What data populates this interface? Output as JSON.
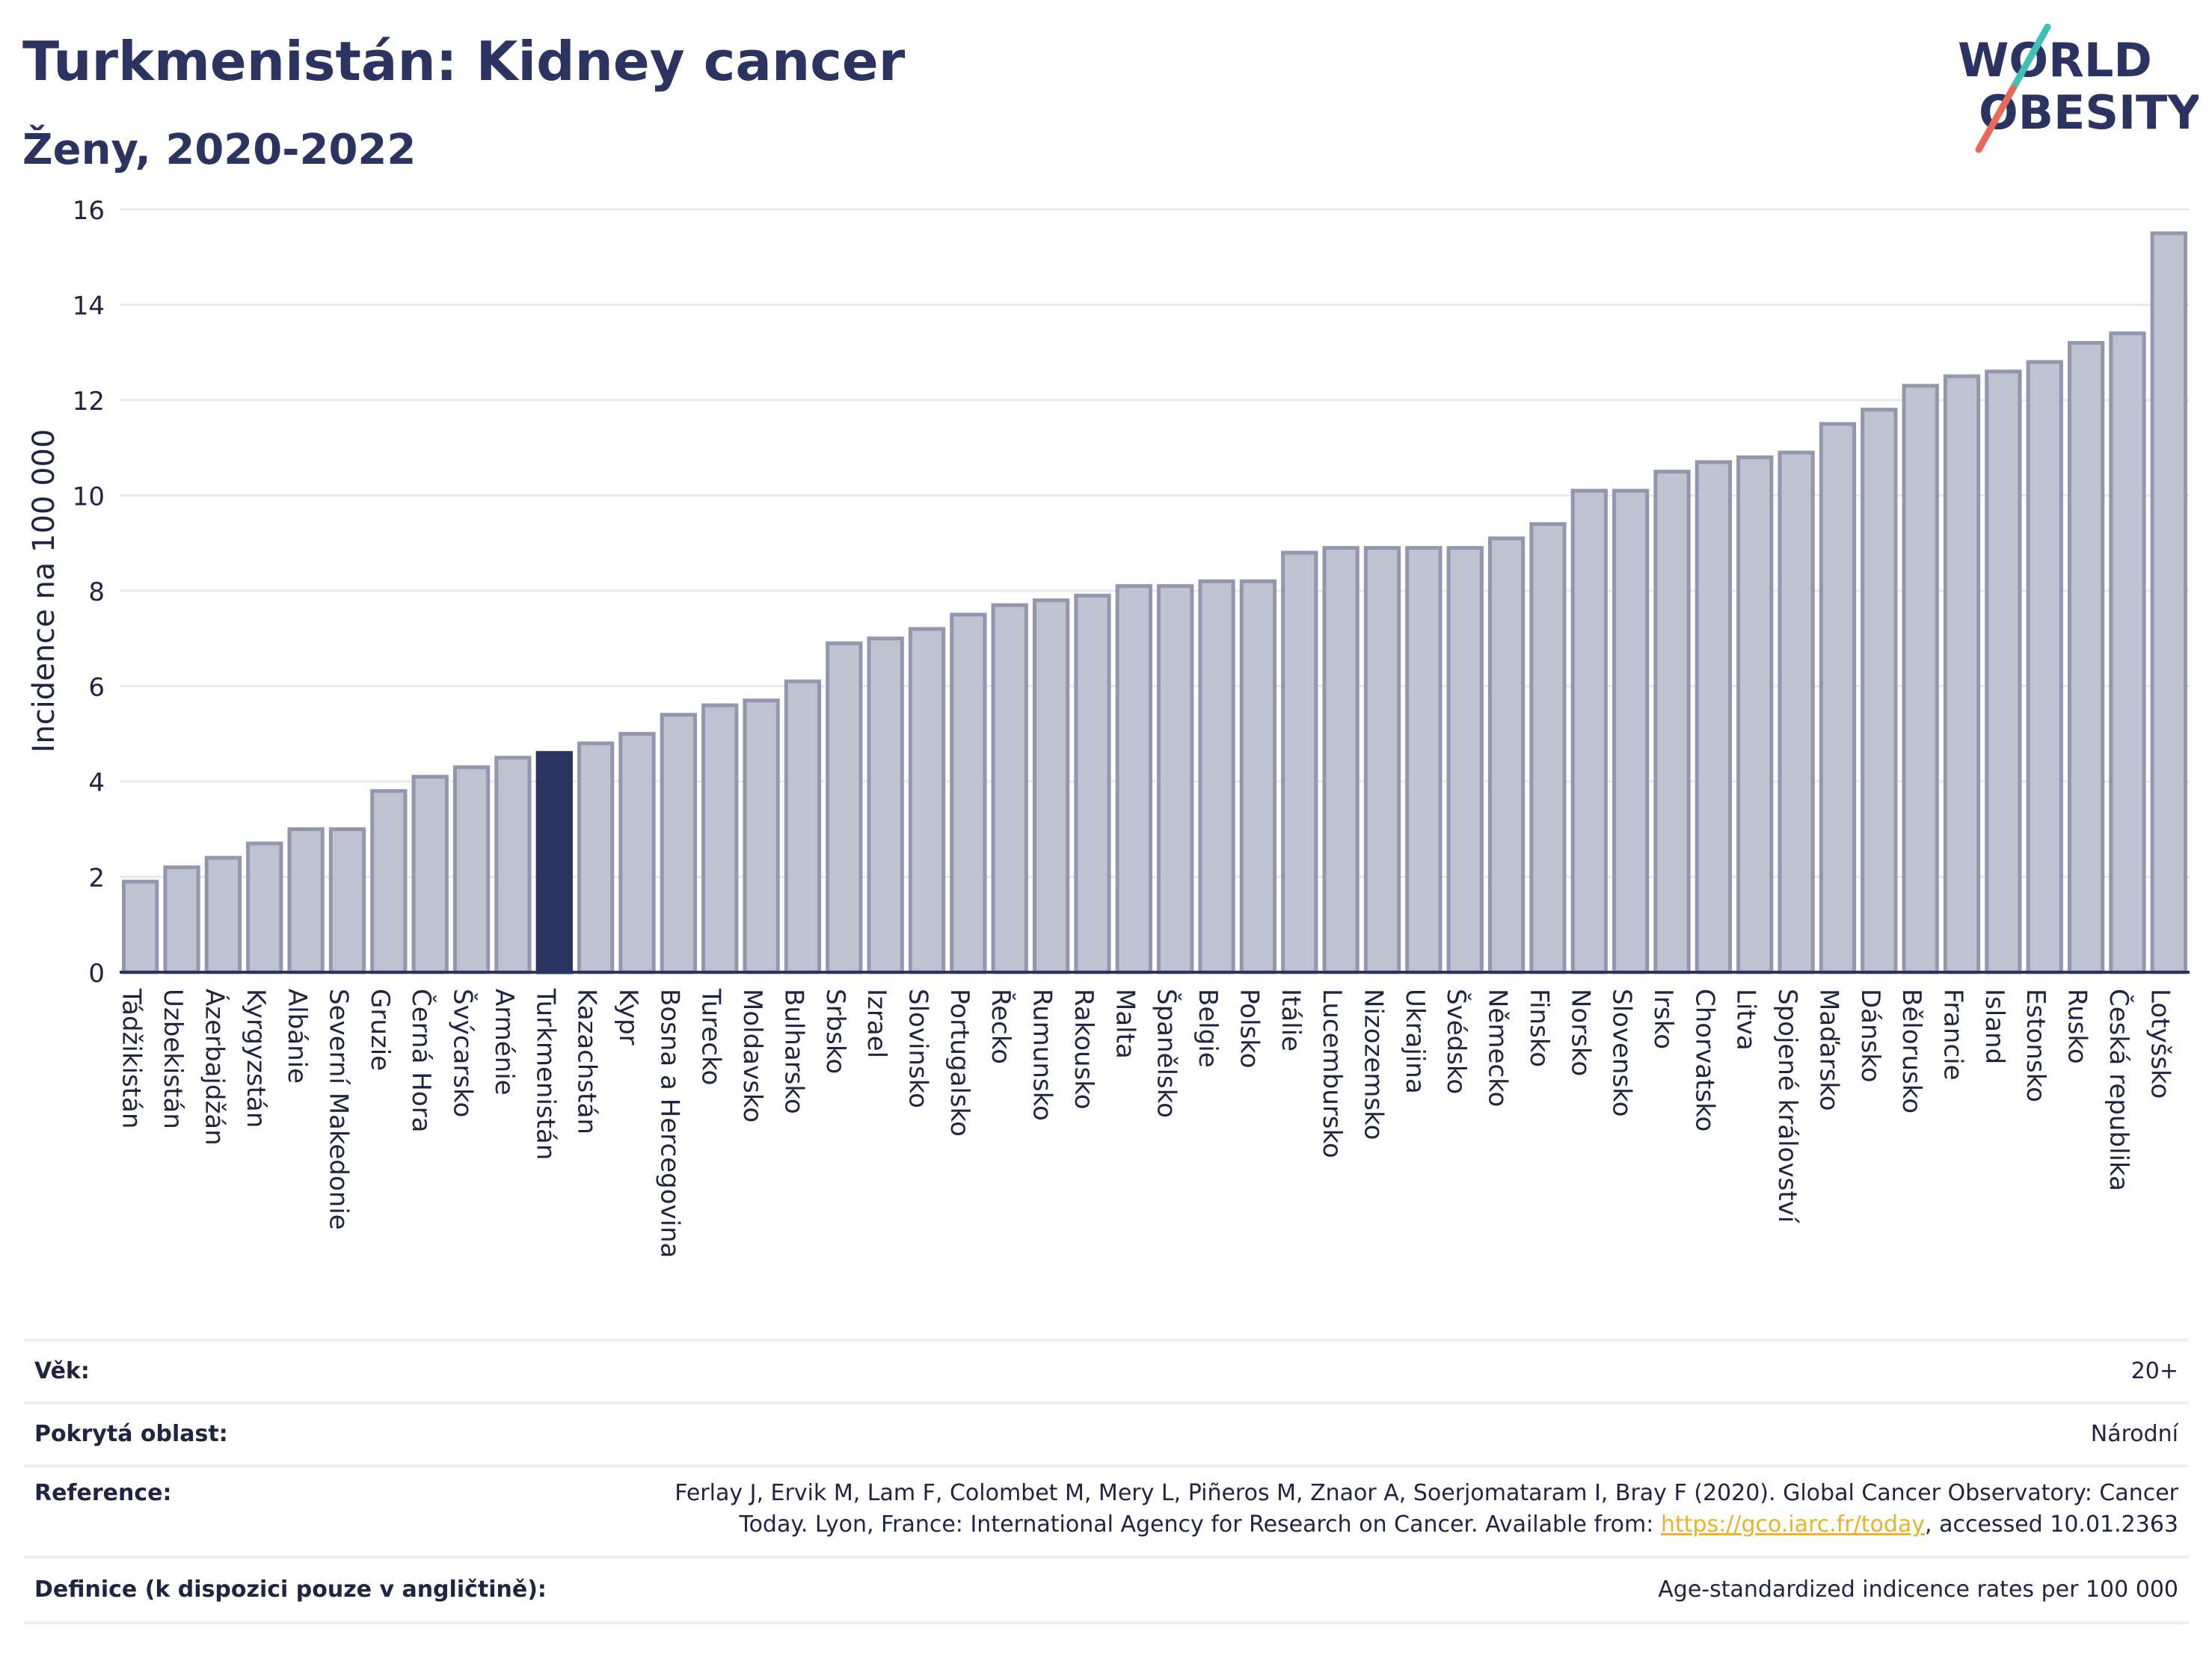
{
  "header": {
    "title": "Turkmenistán: Kidney cancer",
    "subtitle": "Ženy, 2020-2022"
  },
  "logo": {
    "line1": "WORLD",
    "line2": "OBESITY",
    "accent_colors": [
      "#3ec0b5",
      "#e8685a"
    ]
  },
  "chart_data": {
    "type": "bar",
    "title": "Turkmenistán: Kidney cancer",
    "subtitle": "Ženy, 2020-2022",
    "ylabel": "Incidence na 100 000",
    "xlabel": "",
    "ylim": [
      0,
      16
    ],
    "yticks": [
      0,
      2,
      4,
      6,
      8,
      10,
      12,
      14,
      16
    ],
    "grid": true,
    "highlight": "Turkmenistán",
    "colors": {
      "bar": "#bfc3d0",
      "bar_edge": "#9297ae",
      "highlight": "#2b3461"
    },
    "categories": [
      "Tádžikistán",
      "Uzbekistán",
      "Ázerbajdžán",
      "Kyrgyzstán",
      "Albánie",
      "Severní Makedonie",
      "Gruzie",
      "Černá Hora",
      "Švýcarsko",
      "Arménie",
      "Turkmenistán",
      "Kazachstán",
      "Kypr",
      "Bosna a Hercegovina",
      "Turecko",
      "Moldavsko",
      "Bulharsko",
      "Srbsko",
      "Izrael",
      "Slovinsko",
      "Portugalsko",
      "Řecko",
      "Rumunsko",
      "Rakousko",
      "Malta",
      "Španělsko",
      "Belgie",
      "Polsko",
      "Itálie",
      "Lucembursko",
      "Nizozemsko",
      "Ukrajina",
      "Švédsko",
      "Německo",
      "Finsko",
      "Norsko",
      "Slovensko",
      "Irsko",
      "Chorvatsko",
      "Litva",
      "Spojené království",
      "Maďarsko",
      "Dánsko",
      "Bělorusko",
      "Francie",
      "Island",
      "Estonsko",
      "Rusko",
      "Česká republika",
      "Lotyšsko"
    ],
    "values": [
      1.9,
      2.2,
      2.4,
      2.7,
      3.0,
      3.0,
      3.8,
      4.1,
      4.3,
      4.5,
      4.6,
      4.8,
      5.0,
      5.4,
      5.6,
      5.7,
      6.1,
      6.9,
      7.0,
      7.2,
      7.5,
      7.7,
      7.8,
      7.9,
      8.1,
      8.1,
      8.2,
      8.2,
      8.8,
      8.9,
      8.9,
      8.9,
      8.9,
      9.1,
      9.4,
      10.1,
      10.1,
      10.5,
      10.7,
      10.8,
      10.9,
      11.5,
      11.8,
      12.3,
      12.5,
      12.6,
      12.8,
      13.2,
      13.4,
      15.5
    ]
  },
  "info": {
    "rows": [
      {
        "label": "Věk:",
        "value": "20+"
      },
      {
        "label": "Pokrytá oblast:",
        "value": "Národní"
      },
      {
        "label": "Reference:",
        "value_line1": "Ferlay J, Ervik M, Lam F, Colombet M, Mery L, Piñeros M, Znaor A, Soerjomataram I, Bray F (2020). Global Cancer Observatory: Cancer",
        "value_line2_pre": "Today. Lyon, France: International Agency for Research on Cancer. Available from: ",
        "link": "https://gco.iarc.fr/today",
        "value_line2_post": ", accessed 10.01.2363"
      },
      {
        "label": "Definice (k dispozici pouze v angličtině):",
        "value": "Age-standardized indicence rates per 100 000"
      }
    ]
  }
}
